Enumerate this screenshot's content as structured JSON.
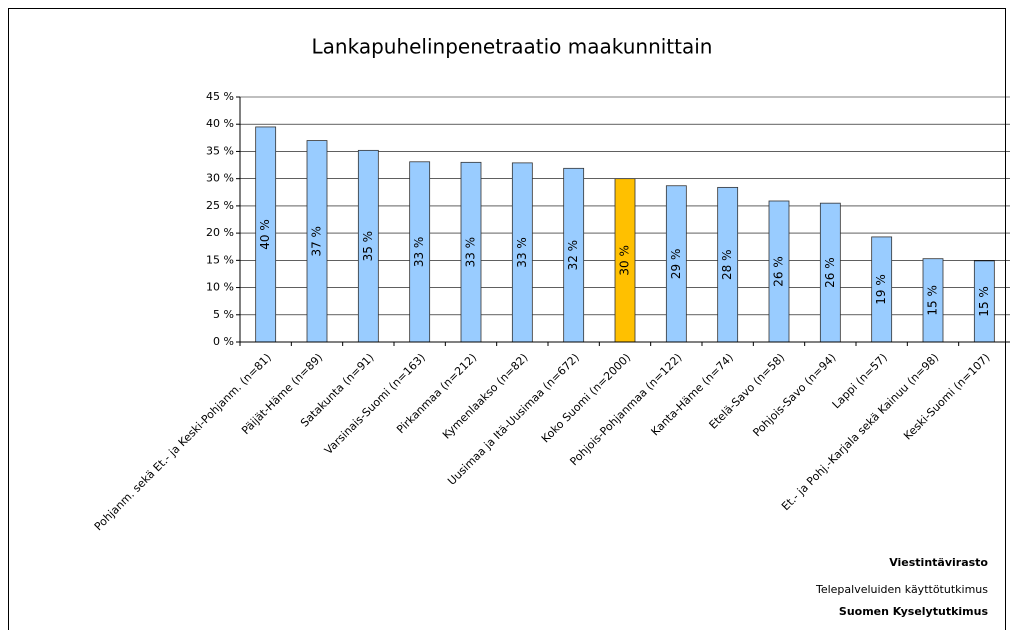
{
  "chart_data": {
    "type": "bar",
    "title": "Lankapuhelinpenetraatio maakunnittain",
    "categories": [
      "Pohjanm. sekä Et.- ja Keski-Pohjanm. (n=81)",
      "Päijät-Häme (n=89)",
      "Satakunta (n=91)",
      "Varsinais-Suomi (n=163)",
      "Pirkanmaa (n=212)",
      "Kymenlaakso (n=82)",
      "Uusimaa ja Itä-Uusimaa (n=672)",
      "Koko Suomi (n=2000)",
      "Pohjois-Pohjanmaa (n=122)",
      "Kanta-Häme (n=74)",
      "Etelä-Savo (n=58)",
      "Pohjois-Savo (n=94)",
      "Lappi (n=57)",
      "Et.- ja Pohj.-Karjala sekä Kainuu (n=98)",
      "Keski-Suomi (n=107)"
    ],
    "values": [
      39.5,
      37,
      35.2,
      33.1,
      33,
      32.9,
      31.9,
      30,
      28.7,
      28.4,
      25.9,
      25.5,
      19.3,
      15.3,
      14.9
    ],
    "value_labels": [
      "40 %",
      "37 %",
      "35 %",
      "33 %",
      "33 %",
      "33 %",
      "32 %",
      "30 %",
      "29 %",
      "28 %",
      "26 %",
      "26 %",
      "19 %",
      "15 %",
      "15 %"
    ],
    "colors": [
      "#99ccff",
      "#99ccff",
      "#99ccff",
      "#99ccff",
      "#99ccff",
      "#99ccff",
      "#99ccff",
      "#ffc000",
      "#99ccff",
      "#99ccff",
      "#99ccff",
      "#99ccff",
      "#99ccff",
      "#99ccff",
      "#99ccff"
    ],
    "ylim": [
      0,
      45
    ],
    "yticks": [
      {
        "value": 0,
        "label": "0 %"
      },
      {
        "value": 5,
        "label": "5 %"
      },
      {
        "value": 10,
        "label": "10 %"
      },
      {
        "value": 15,
        "label": "15 %"
      },
      {
        "value": 20,
        "label": "20 %"
      },
      {
        "value": 25,
        "label": "25 %"
      },
      {
        "value": 30,
        "label": "30 %"
      },
      {
        "value": 35,
        "label": "35 %"
      },
      {
        "value": 40,
        "label": "40 %"
      },
      {
        "value": 45,
        "label": "45 %"
      }
    ],
    "grid": true,
    "footer": [
      "Viestintävirasto",
      "Telepalveluiden käyttötutkimus",
      "Suomen Kyselytutkimus"
    ]
  }
}
